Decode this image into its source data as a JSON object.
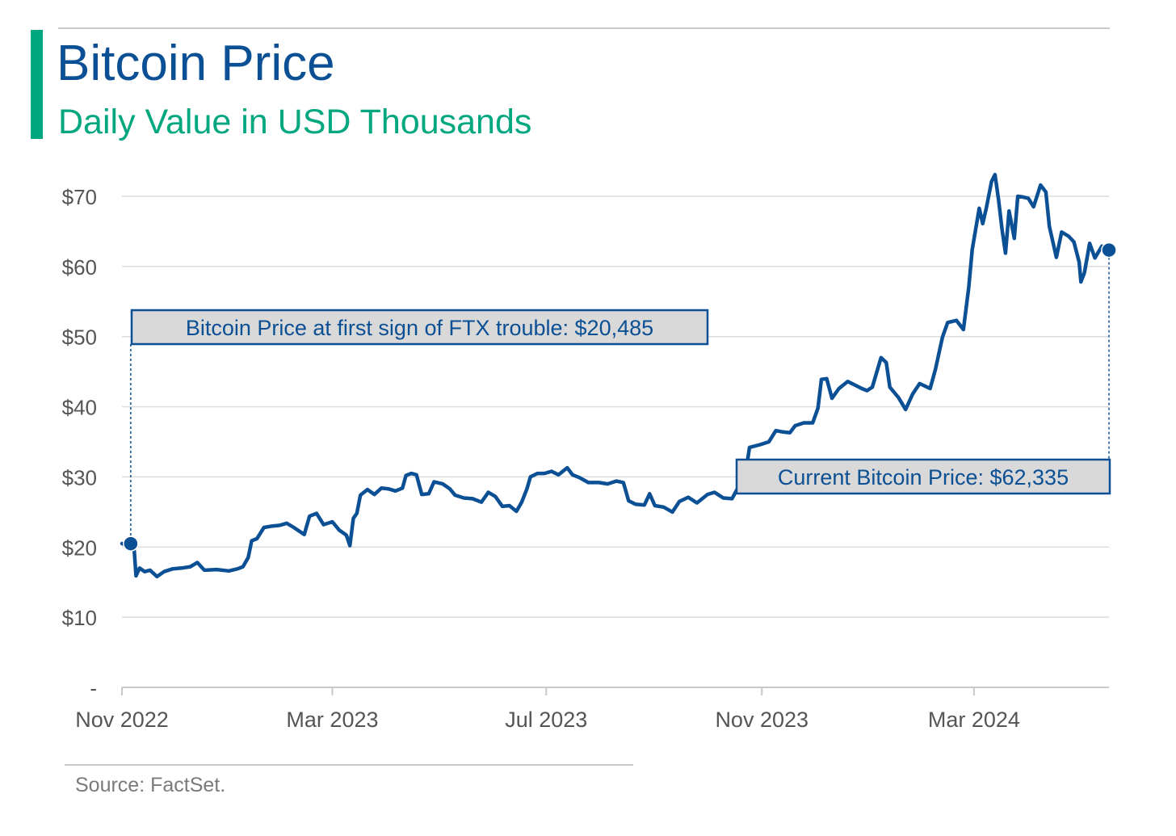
{
  "header": {
    "title": "Bitcoin Price",
    "subtitle": "Daily Value in USD Thousands"
  },
  "footer": {
    "source": "Source: FactSet."
  },
  "colors": {
    "line": "#0b4f94",
    "accent": "#00a77f",
    "grid": "#dcdcdc",
    "axis_text": "#555555",
    "callout_fill": "#d9d9d9"
  },
  "chart_data": {
    "type": "line",
    "title": "Bitcoin Price",
    "subtitle": "Daily Value in USD Thousands",
    "xlabel": "",
    "ylabel": "",
    "ylim": [
      0,
      70
    ],
    "xlim": [
      "2022-11-01",
      "2024-05-17"
    ],
    "grid": true,
    "y_ticks": [
      0,
      10,
      20,
      30,
      40,
      50,
      60,
      70
    ],
    "y_tick_labels": [
      "-",
      "$10",
      "$20",
      "$30",
      "$40",
      "$50",
      "$60",
      "$70"
    ],
    "x_ticks": [
      "2022-11-01",
      "2023-03-01",
      "2023-07-01",
      "2023-11-01",
      "2024-03-01"
    ],
    "x_tick_labels": [
      "Nov 2022",
      "Mar 2023",
      "Jul 2023",
      "Nov 2023",
      "Mar 2024"
    ],
    "series": [
      {
        "name": "",
        "points": [
          [
            "2022-11-01",
            20.5
          ],
          [
            "2022-11-04",
            20.2
          ],
          [
            "2022-11-06",
            21.2
          ],
          [
            "2022-11-08",
            19.5
          ],
          [
            "2022-11-09",
            15.9
          ],
          [
            "2022-11-11",
            17.0
          ],
          [
            "2022-11-14",
            16.5
          ],
          [
            "2022-11-17",
            16.7
          ],
          [
            "2022-11-21",
            15.8
          ],
          [
            "2022-11-25",
            16.5
          ],
          [
            "2022-11-30",
            16.9
          ],
          [
            "2022-12-05",
            17.0
          ],
          [
            "2022-12-10",
            17.2
          ],
          [
            "2022-12-14",
            17.8
          ],
          [
            "2022-12-18",
            16.7
          ],
          [
            "2022-12-25",
            16.8
          ],
          [
            "2023-01-01",
            16.6
          ],
          [
            "2023-01-06",
            16.9
          ],
          [
            "2023-01-09",
            17.2
          ],
          [
            "2023-01-12",
            18.5
          ],
          [
            "2023-01-14",
            20.9
          ],
          [
            "2023-01-17",
            21.2
          ],
          [
            "2023-01-21",
            22.8
          ],
          [
            "2023-01-26",
            23.0
          ],
          [
            "2023-01-30",
            23.1
          ],
          [
            "2023-02-03",
            23.4
          ],
          [
            "2023-02-07",
            22.8
          ],
          [
            "2023-02-13",
            21.8
          ],
          [
            "2023-02-16",
            24.4
          ],
          [
            "2023-02-20",
            24.8
          ],
          [
            "2023-02-24",
            23.2
          ],
          [
            "2023-03-01",
            23.6
          ],
          [
            "2023-03-05",
            22.4
          ],
          [
            "2023-03-09",
            21.7
          ],
          [
            "2023-03-11",
            20.2
          ],
          [
            "2023-03-13",
            24.1
          ],
          [
            "2023-03-15",
            24.8
          ],
          [
            "2023-03-17",
            27.4
          ],
          [
            "2023-03-21",
            28.2
          ],
          [
            "2023-03-25",
            27.5
          ],
          [
            "2023-03-29",
            28.4
          ],
          [
            "2023-04-02",
            28.3
          ],
          [
            "2023-04-06",
            28.0
          ],
          [
            "2023-04-10",
            28.4
          ],
          [
            "2023-04-12",
            30.2
          ],
          [
            "2023-04-15",
            30.5
          ],
          [
            "2023-04-18",
            30.3
          ],
          [
            "2023-04-21",
            27.5
          ],
          [
            "2023-04-25",
            27.6
          ],
          [
            "2023-04-28",
            29.3
          ],
          [
            "2023-05-03",
            29.0
          ],
          [
            "2023-05-07",
            28.3
          ],
          [
            "2023-05-10",
            27.4
          ],
          [
            "2023-05-15",
            27.0
          ],
          [
            "2023-05-20",
            26.9
          ],
          [
            "2023-05-25",
            26.4
          ],
          [
            "2023-05-29",
            27.8
          ],
          [
            "2023-06-02",
            27.2
          ],
          [
            "2023-06-06",
            25.8
          ],
          [
            "2023-06-10",
            25.9
          ],
          [
            "2023-06-14",
            25.1
          ],
          [
            "2023-06-17",
            26.4
          ],
          [
            "2023-06-20",
            28.3
          ],
          [
            "2023-06-22",
            30.0
          ],
          [
            "2023-06-26",
            30.5
          ],
          [
            "2023-06-30",
            30.5
          ],
          [
            "2023-07-04",
            30.8
          ],
          [
            "2023-07-08",
            30.3
          ],
          [
            "2023-07-13",
            31.3
          ],
          [
            "2023-07-16",
            30.3
          ],
          [
            "2023-07-20",
            29.9
          ],
          [
            "2023-07-25",
            29.2
          ],
          [
            "2023-07-31",
            29.2
          ],
          [
            "2023-08-05",
            29.0
          ],
          [
            "2023-08-10",
            29.4
          ],
          [
            "2023-08-14",
            29.2
          ],
          [
            "2023-08-17",
            26.6
          ],
          [
            "2023-08-21",
            26.1
          ],
          [
            "2023-08-26",
            26.0
          ],
          [
            "2023-08-29",
            27.6
          ],
          [
            "2023-09-01",
            25.9
          ],
          [
            "2023-09-06",
            25.7
          ],
          [
            "2023-09-11",
            25.0
          ],
          [
            "2023-09-15",
            26.5
          ],
          [
            "2023-09-20",
            27.1
          ],
          [
            "2023-09-25",
            26.3
          ],
          [
            "2023-10-01",
            27.5
          ],
          [
            "2023-10-05",
            27.8
          ],
          [
            "2023-10-10",
            27.0
          ],
          [
            "2023-10-15",
            26.9
          ],
          [
            "2023-10-18",
            28.3
          ],
          [
            "2023-10-20",
            29.5
          ],
          [
            "2023-10-23",
            31.0
          ],
          [
            "2023-10-25",
            34.2
          ],
          [
            "2023-10-31",
            34.6
          ],
          [
            "2023-11-05",
            35.0
          ],
          [
            "2023-11-09",
            36.6
          ],
          [
            "2023-11-13",
            36.4
          ],
          [
            "2023-11-17",
            36.3
          ],
          [
            "2023-11-20",
            37.3
          ],
          [
            "2023-11-25",
            37.7
          ],
          [
            "2023-11-30",
            37.7
          ],
          [
            "2023-12-03",
            39.8
          ],
          [
            "2023-12-05",
            43.9
          ],
          [
            "2023-12-08",
            44.0
          ],
          [
            "2023-12-11",
            41.2
          ],
          [
            "2023-12-15",
            42.6
          ],
          [
            "2023-12-20",
            43.6
          ],
          [
            "2023-12-24",
            43.1
          ],
          [
            "2023-12-28",
            42.6
          ],
          [
            "2023-12-31",
            42.3
          ],
          [
            "2024-01-03",
            42.8
          ],
          [
            "2024-01-08",
            47.0
          ],
          [
            "2024-01-11",
            46.3
          ],
          [
            "2024-01-13",
            42.8
          ],
          [
            "2024-01-18",
            41.3
          ],
          [
            "2024-01-22",
            39.6
          ],
          [
            "2024-01-26",
            41.8
          ],
          [
            "2024-01-30",
            43.3
          ],
          [
            "2024-02-05",
            42.6
          ],
          [
            "2024-02-08",
            45.3
          ],
          [
            "2024-02-12",
            49.9
          ],
          [
            "2024-02-15",
            52.0
          ],
          [
            "2024-02-20",
            52.3
          ],
          [
            "2024-02-24",
            51.0
          ],
          [
            "2024-02-27",
            57.0
          ],
          [
            "2024-02-29",
            62.4
          ],
          [
            "2024-03-04",
            68.3
          ],
          [
            "2024-03-06",
            66.1
          ],
          [
            "2024-03-08",
            68.3
          ],
          [
            "2024-03-11",
            72.1
          ],
          [
            "2024-03-13",
            73.1
          ],
          [
            "2024-03-15",
            69.5
          ],
          [
            "2024-03-17",
            65.3
          ],
          [
            "2024-03-19",
            61.9
          ],
          [
            "2024-03-21",
            67.9
          ],
          [
            "2024-03-24",
            64.0
          ],
          [
            "2024-03-26",
            70.0
          ],
          [
            "2024-03-29",
            69.9
          ],
          [
            "2024-04-01",
            69.7
          ],
          [
            "2024-04-04",
            68.5
          ],
          [
            "2024-04-08",
            71.6
          ],
          [
            "2024-04-11",
            70.6
          ],
          [
            "2024-04-13",
            65.7
          ],
          [
            "2024-04-17",
            61.3
          ],
          [
            "2024-04-20",
            64.9
          ],
          [
            "2024-04-24",
            64.3
          ],
          [
            "2024-04-27",
            63.5
          ],
          [
            "2024-04-30",
            60.6
          ],
          [
            "2024-05-01",
            57.8
          ],
          [
            "2024-05-03",
            59.1
          ],
          [
            "2024-05-06",
            63.3
          ],
          [
            "2024-05-09",
            61.2
          ],
          [
            "2024-05-13",
            62.9
          ],
          [
            "2024-05-17",
            62.3
          ]
        ]
      }
    ],
    "annotations": [
      {
        "label": "Bitcoin Price at first sign of FTX trouble: $20,485",
        "x": "2022-11-06",
        "y": 20.485
      },
      {
        "label": "Current Bitcoin Price: $62,335",
        "x": "2024-05-17",
        "y": 62.335
      }
    ]
  }
}
